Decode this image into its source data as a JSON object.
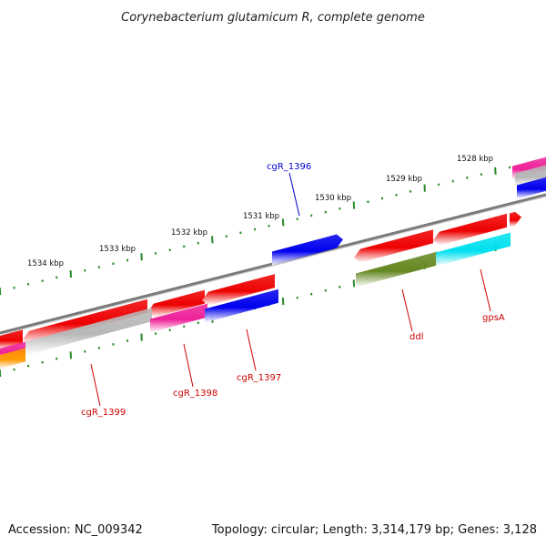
{
  "title": "Corynebacterium glutamicum R, complete genome",
  "footer": {
    "accession": "Accession: NC_009342",
    "summary": "Topology: circular; Length: 3,314,179 bp; Genes: 3,128"
  },
  "ticks": [
    "1528 kbp",
    "1529 kbp",
    "1530 kbp",
    "1531 kbp",
    "1532 kbp",
    "1533 kbp",
    "1534 kbp"
  ],
  "gene_labels": [
    {
      "id": "cgR_1396",
      "text": "cgR_1396",
      "color": "#0000cc"
    },
    {
      "id": "cgR_1397",
      "text": "cgR_1397",
      "color": "#cc0000"
    },
    {
      "id": "cgR_1398",
      "text": "cgR_1398",
      "color": "#cc0000"
    },
    {
      "id": "cgR_1399",
      "text": "cgR_1399",
      "color": "#cc0000"
    },
    {
      "id": "ddl",
      "text": "ddl",
      "color": "#cc0000"
    },
    {
      "id": "gpsA",
      "text": "gpsA",
      "color": "#cc0000"
    }
  ],
  "colors": {
    "tick_green": "#2a8a2a",
    "backbone_gray": "#7a7a7a",
    "gene_red": "#ee0000",
    "gene_blue": "#0000ee",
    "gene_magenta": "#ee2299",
    "gene_gray": "#b8b8b8",
    "gene_olive": "#668822",
    "gene_cyan": "#00e0ee",
    "gene_orange": "#ff9900"
  }
}
